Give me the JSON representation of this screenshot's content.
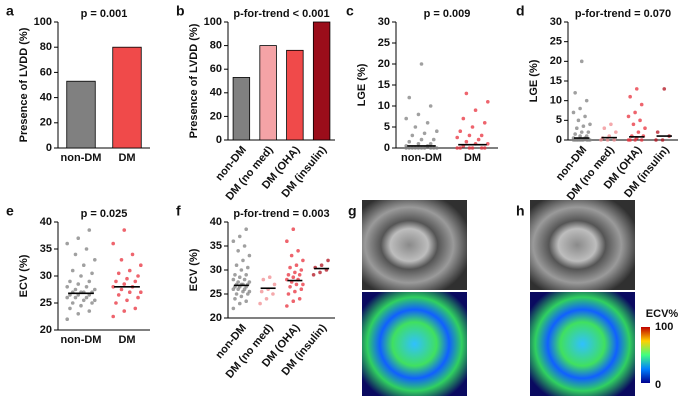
{
  "chart_data": [
    {
      "type": "bar",
      "panel": "a",
      "title": "p = 0.001",
      "y_label": "Presence of LVDD (%)",
      "categories": [
        "non-DM",
        "DM"
      ],
      "values": [
        53,
        80
      ],
      "colors": [
        "#808080",
        "#f04a4a"
      ],
      "ylim": [
        0,
        100
      ],
      "yticks": [
        0,
        20,
        40,
        60,
        80,
        100
      ]
    },
    {
      "type": "bar",
      "panel": "b",
      "title": "p-for-trend < 0.001",
      "y_label": "Presence of LVDD (%)",
      "categories": [
        "non-DM",
        "DM (no med)",
        "DM (OHA)",
        "DM (insulin)"
      ],
      "values": [
        53,
        80,
        76,
        100
      ],
      "colors": [
        "#808080",
        "#f4a3a6",
        "#f04a4a",
        "#9b0d1a"
      ],
      "ylim": [
        0,
        100
      ],
      "yticks": [
        0,
        20,
        40,
        60,
        80,
        100
      ]
    },
    {
      "type": "strip",
      "panel": "c",
      "title": "p = 0.009",
      "y_label": "LGE  (%)",
      "categories": [
        "non-DM",
        "DM"
      ],
      "colors": [
        "#808080",
        "#e8303c"
      ],
      "points": [
        [
          0,
          0,
          0,
          0,
          0,
          0,
          0,
          0,
          0,
          0,
          0.5,
          0.5,
          1,
          1,
          1.5,
          2,
          2,
          3,
          3.5,
          4,
          5,
          6,
          7,
          8,
          10,
          12,
          20
        ],
        [
          0,
          0,
          0,
          0,
          0,
          0,
          0.5,
          1,
          1,
          1.5,
          2,
          2.5,
          3,
          3,
          4,
          5,
          6,
          7,
          9,
          11,
          13
        ]
      ],
      "medians": [
        0.5,
        0.8
      ],
      "ylim": [
        0,
        30
      ],
      "yticks": [
        0,
        5,
        10,
        15,
        20,
        25,
        30
      ]
    },
    {
      "type": "strip",
      "panel": "d",
      "title": "p-for-trend = 0.070",
      "y_label": "LGE  (%)",
      "categories": [
        "non-DM",
        "DM (no med)",
        "DM (OHA)",
        "DM (insulin)"
      ],
      "colors": [
        "#808080",
        "#f08c90",
        "#e8303c",
        "#b0101e"
      ],
      "points": [
        [
          0,
          0,
          0,
          0,
          0,
          0,
          0,
          0,
          0,
          0,
          0.5,
          0.5,
          1,
          1,
          1.5,
          2,
          2,
          3,
          3.5,
          4,
          5,
          6,
          7,
          8,
          10,
          12,
          20
        ],
        [
          0,
          0,
          0,
          0.5,
          1,
          2,
          3,
          4
        ],
        [
          0,
          0,
          0,
          0,
          0.5,
          1,
          1,
          2,
          3,
          4,
          5,
          6,
          7,
          9,
          11,
          13
        ],
        [
          0,
          0,
          1,
          2,
          13
        ]
      ],
      "medians": [
        0.5,
        0.6,
        0.8,
        1
      ],
      "ylim": [
        0,
        30
      ],
      "yticks": [
        0,
        5,
        10,
        15,
        20,
        25,
        30
      ]
    },
    {
      "type": "strip",
      "panel": "e",
      "title": "p = 0.025",
      "y_label": "ECV (%)",
      "categories": [
        "non-DM",
        "DM"
      ],
      "colors": [
        "#808080",
        "#e8303c"
      ],
      "points": [
        [
          22,
          23,
          23.5,
          24,
          24.5,
          25,
          25,
          25.5,
          25.5,
          26,
          26,
          26,
          26.5,
          26.5,
          26.5,
          27,
          27,
          27,
          27,
          27.5,
          27.5,
          28,
          28,
          28.5,
          29,
          29,
          30,
          30.5,
          31,
          32,
          33,
          34,
          35,
          36,
          37,
          38.5
        ],
        [
          22.5,
          23.5,
          24,
          25,
          25.5,
          26,
          26.5,
          27,
          27,
          27.5,
          28,
          28,
          28.5,
          29,
          29,
          29.5,
          30,
          30.5,
          31,
          32,
          33,
          34,
          36,
          38.5
        ]
      ],
      "medians": [
        26.8,
        28
      ],
      "ylim": [
        20,
        40
      ],
      "yticks": [
        20,
        25,
        30,
        35,
        40
      ]
    },
    {
      "type": "strip",
      "panel": "f",
      "title": "p-for-trend = 0.003",
      "y_label": "ECV (%)",
      "categories": [
        "non-DM",
        "DM (no med)",
        "DM (OHA)",
        "DM (insulin)"
      ],
      "colors": [
        "#808080",
        "#f08c90",
        "#e8303c",
        "#b0101e"
      ],
      "points": [
        [
          22,
          23,
          23.5,
          24,
          24.5,
          25,
          25,
          25.5,
          25.5,
          26,
          26,
          26,
          26.5,
          26.5,
          26.5,
          27,
          27,
          27,
          27,
          27.5,
          27.5,
          28,
          28,
          28.5,
          29,
          29,
          30,
          30.5,
          31,
          32,
          33,
          34,
          35,
          36,
          37,
          38.5
        ],
        [
          23,
          24,
          25,
          25.5,
          26,
          27,
          28,
          28.5
        ],
        [
          22.5,
          23.5,
          24,
          25,
          25.5,
          26,
          26.5,
          27,
          27,
          27.5,
          28,
          28,
          28.5,
          29,
          29,
          29.5,
          30,
          30.5,
          31,
          32,
          33,
          34,
          36,
          38.5
        ],
        [
          29,
          29.5,
          30,
          30.5,
          31,
          32
        ]
      ],
      "medians": [
        26.8,
        26.2,
        27.8,
        30.3
      ],
      "ylim": [
        20,
        40
      ],
      "yticks": [
        20,
        25,
        30,
        35,
        40
      ]
    }
  ],
  "images": {
    "panels": [
      "g",
      "h"
    ],
    "colorbar": {
      "title": "ECV%",
      "ticks": [
        100,
        0
      ]
    }
  }
}
